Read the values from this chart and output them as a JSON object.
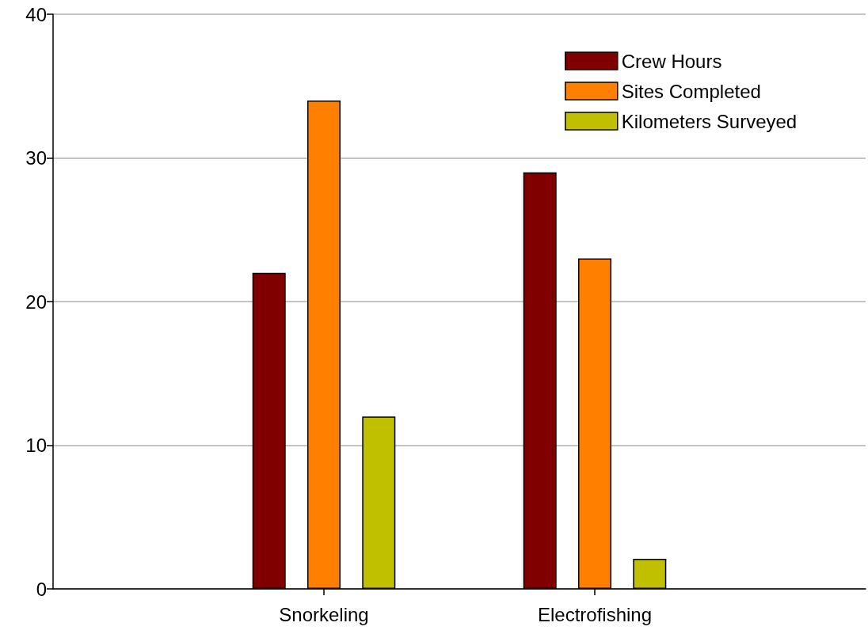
{
  "chart_data": {
    "type": "bar",
    "categories": [
      null,
      "Snorkeling",
      "Electrofishing",
      null
    ],
    "series": [
      {
        "name": "Crew Hours",
        "color": "#800000",
        "values": [
          null,
          22,
          29,
          null
        ]
      },
      {
        "name": "Sites Completed",
        "color": "#ff8000",
        "values": [
          null,
          34,
          23,
          null
        ]
      },
      {
        "name": "Kilometers Surveyed",
        "color": "#c0c000",
        "values": [
          null,
          12,
          2.1,
          null
        ]
      }
    ],
    "ylim": [
      0,
      40
    ],
    "yticks": [
      0,
      10,
      20,
      30,
      40
    ],
    "grid": "y",
    "legend": "top right"
  }
}
